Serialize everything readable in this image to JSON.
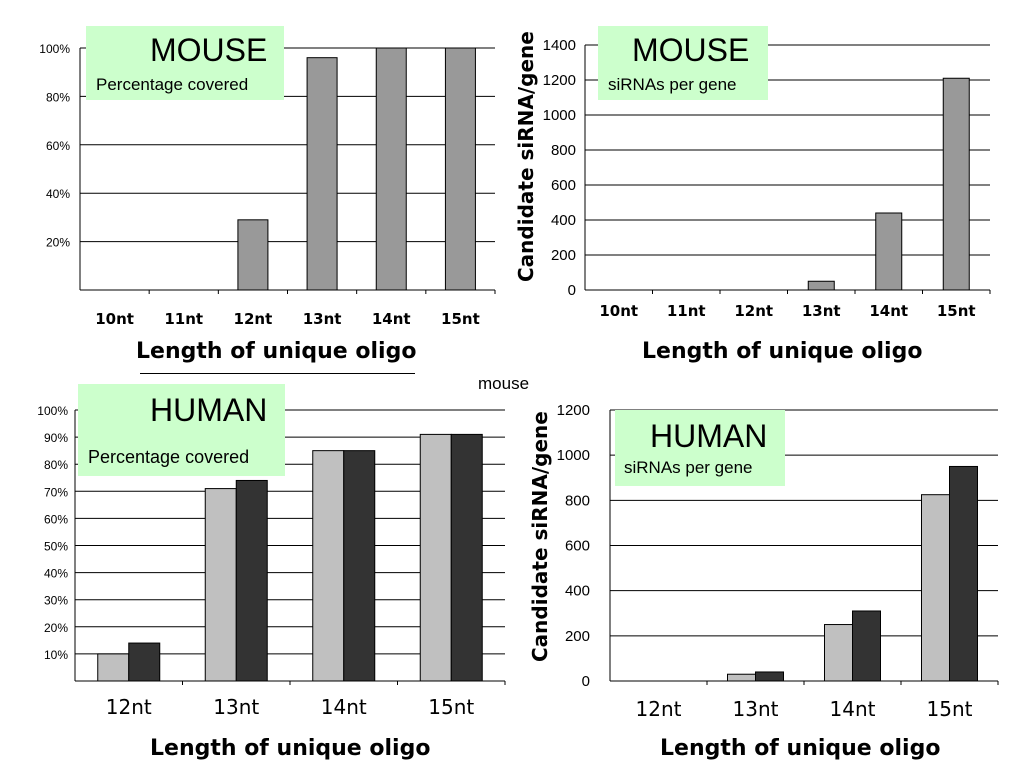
{
  "center_label": "mouse",
  "chart_data": [
    {
      "id": "mouse_pct",
      "type": "bar",
      "panel_title": "MOUSE",
      "panel_subtitle": "Percentage covered",
      "xlabel": "Length of unique oligo",
      "ylabel": "",
      "categories": [
        "10nt",
        "11nt",
        "12nt",
        "13nt",
        "14nt",
        "15nt"
      ],
      "series": [
        {
          "color": "#999999",
          "values": [
            0,
            0,
            29,
            96,
            100,
            100
          ]
        }
      ],
      "ylim": [
        0,
        100
      ],
      "yticks": [
        0,
        20,
        40,
        60,
        80,
        100
      ],
      "ytick_labels": [
        "",
        "20%",
        "40%",
        "60%",
        "80%",
        "100%"
      ],
      "grid": true
    },
    {
      "id": "mouse_sirna",
      "type": "bar",
      "panel_title": "MOUSE",
      "panel_subtitle": "siRNAs per gene",
      "xlabel": "Length of unique oligo",
      "ylabel": "Candidate siRNA/gene",
      "categories": [
        "10nt",
        "11nt",
        "12nt",
        "13nt",
        "14nt",
        "15nt"
      ],
      "series": [
        {
          "color": "#999999",
          "values": [
            0,
            0,
            0,
            50,
            440,
            1210
          ]
        }
      ],
      "ylim": [
        0,
        1400
      ],
      "yticks": [
        0,
        200,
        400,
        600,
        800,
        1000,
        1200,
        1400
      ],
      "ytick_labels": [
        "0",
        "200",
        "400",
        "600",
        "800",
        "1000",
        "1200",
        "1400"
      ],
      "grid": true
    },
    {
      "id": "human_pct",
      "type": "bar",
      "panel_title": "HUMAN",
      "panel_subtitle": "Percentage covered",
      "xlabel": "Length of unique oligo",
      "ylabel": "",
      "categories": [
        "12nt",
        "13nt",
        "14nt",
        "15nt"
      ],
      "series": [
        {
          "color": "#c0c0c0",
          "values": [
            10,
            71,
            85,
            91
          ]
        },
        {
          "color": "#333333",
          "values": [
            14,
            74,
            85,
            91
          ]
        }
      ],
      "ylim": [
        0,
        100
      ],
      "yticks": [
        0,
        10,
        20,
        30,
        40,
        50,
        60,
        70,
        80,
        90,
        100
      ],
      "ytick_labels": [
        "",
        "10%",
        "20%",
        "30%",
        "40%",
        "50%",
        "60%",
        "70%",
        "80%",
        "90%",
        "100%"
      ],
      "grid": true
    },
    {
      "id": "human_sirna",
      "type": "bar",
      "panel_title": "HUMAN",
      "panel_subtitle": "siRNAs per gene",
      "xlabel": "Length of unique oligo",
      "ylabel": "Candidate siRNA/gene",
      "categories": [
        "12nt",
        "13nt",
        "14nt",
        "15nt"
      ],
      "series": [
        {
          "color": "#c0c0c0",
          "values": [
            0,
            30,
            250,
            825
          ]
        },
        {
          "color": "#333333",
          "values": [
            0,
            40,
            310,
            950
          ]
        }
      ],
      "ylim": [
        0,
        1200
      ],
      "yticks": [
        0,
        200,
        400,
        600,
        800,
        1000,
        1200
      ],
      "ytick_labels": [
        "0",
        "200",
        "400",
        "600",
        "800",
        "1000",
        "1200"
      ],
      "grid": true
    }
  ]
}
